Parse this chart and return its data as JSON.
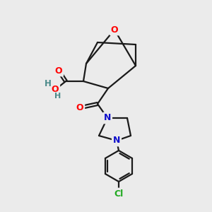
{
  "background_color": "#ebebeb",
  "bond_color": "#1a1a1a",
  "atom_colors": {
    "O": "#ff0000",
    "N": "#1010cc",
    "Cl": "#22aa22",
    "H": "#4a8a8a",
    "C": "#1a1a1a"
  }
}
